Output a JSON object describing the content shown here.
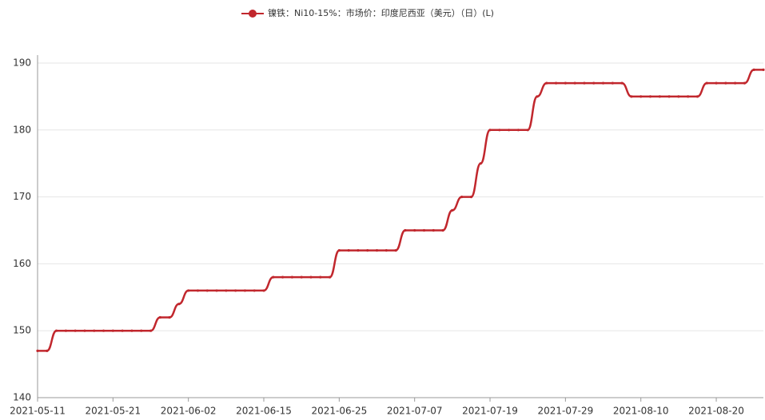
{
  "chart_data": {
    "type": "line",
    "categories": [
      "2021-05-11",
      null,
      null,
      null,
      null,
      null,
      null,
      null,
      "2021-05-21",
      null,
      null,
      null,
      null,
      null,
      null,
      null,
      "2021-06-02",
      null,
      null,
      null,
      null,
      null,
      null,
      null,
      "2021-06-15",
      null,
      null,
      null,
      null,
      null,
      null,
      null,
      "2021-06-25",
      null,
      null,
      null,
      null,
      null,
      null,
      null,
      "2021-07-07",
      null,
      null,
      null,
      null,
      null,
      null,
      null,
      "2021-07-19",
      null,
      null,
      null,
      null,
      null,
      null,
      null,
      "2021-07-29",
      null,
      null,
      null,
      null,
      null,
      null,
      null,
      "2021-08-10",
      null,
      null,
      null,
      null,
      null,
      null,
      null,
      "2021-08-20",
      null,
      null,
      null,
      null,
      null
    ],
    "series": [
      {
        "name": "镍铁：Ni10-15%：市场价：印度尼西亚（美元）（日）(L)",
        "color": "#c1272d",
        "values": [
          147,
          147,
          150,
          150,
          150,
          150,
          150,
          150,
          150,
          150,
          150,
          150,
          150,
          152,
          152,
          154,
          156,
          156,
          156,
          156,
          156,
          156,
          156,
          156,
          156,
          158,
          158,
          158,
          158,
          158,
          158,
          158,
          162,
          162,
          162,
          162,
          162,
          162,
          162,
          165,
          165,
          165,
          165,
          165,
          168,
          170,
          170,
          175,
          180,
          180,
          180,
          180,
          180,
          185,
          187,
          187,
          187,
          187,
          187,
          187,
          187,
          187,
          187,
          185,
          185,
          185,
          185,
          185,
          185,
          185,
          185,
          187,
          187,
          187,
          187,
          187,
          189,
          189
        ]
      }
    ],
    "ylim": [
      140,
      190
    ],
    "yticks": [
      140,
      150,
      160,
      170,
      180,
      190
    ],
    "grid": true,
    "legend": "top"
  }
}
